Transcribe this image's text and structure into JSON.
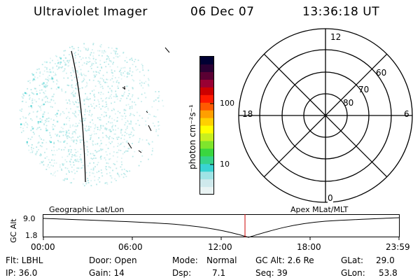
{
  "header": {
    "title": "Ultraviolet Imager",
    "date": "06 Dec 07",
    "time": "13:36:18 UT"
  },
  "colorbar": {
    "unit_label": "photon cm⁻²s⁻¹",
    "ticks": [
      "100",
      "10"
    ],
    "colors": [
      "#e9f3f3",
      "#cfe9ec",
      "#9fe3e5",
      "#39d3d3",
      "#36d38b",
      "#3ad63f",
      "#7fe52c",
      "#c8ef1f",
      "#ffff00",
      "#ffd000",
      "#ff9f00",
      "#ff5a00",
      "#ff1a00",
      "#cc0000",
      "#990033",
      "#5a0033",
      "#2a0033",
      "#000033"
    ]
  },
  "polar_plot": {
    "mlt_labels": {
      "top": "12",
      "left": "18",
      "right": "6",
      "bottom": "0"
    },
    "lat_labels": [
      "60",
      "70",
      "80"
    ]
  },
  "timeline": {
    "y_axis_label": "GC Alt",
    "y_ticks": [
      "9.0",
      "1.8"
    ],
    "left_caption": "Geographic Lat/Lon",
    "right_caption": "Apex MLat/MLT",
    "x_ticks": [
      "00:00",
      "06:00",
      "12:00",
      "18:00",
      "23:59"
    ],
    "marker_color": "#cc0000",
    "marker_fraction": 0.567
  },
  "info": {
    "row1": {
      "flt": "Flt: LBHL",
      "door": "Door: Open",
      "mode_label": "Mode:",
      "mode_value": "Normal",
      "gc_alt": "GC Alt: 2.6 Re",
      "glat_label": "GLat:",
      "glat_value": "29.0"
    },
    "row2": {
      "ip": "IP: 36.0",
      "gain": "Gain: 14",
      "dsp_label": "Dsp:",
      "dsp_value": "7.1",
      "seq": "Seq: 39",
      "glon_label": "GLon:",
      "glon_value": "53.8"
    }
  },
  "styles": {
    "speckle_color": "#a7e3e3",
    "speckle_strong": "#3fd0d0"
  }
}
